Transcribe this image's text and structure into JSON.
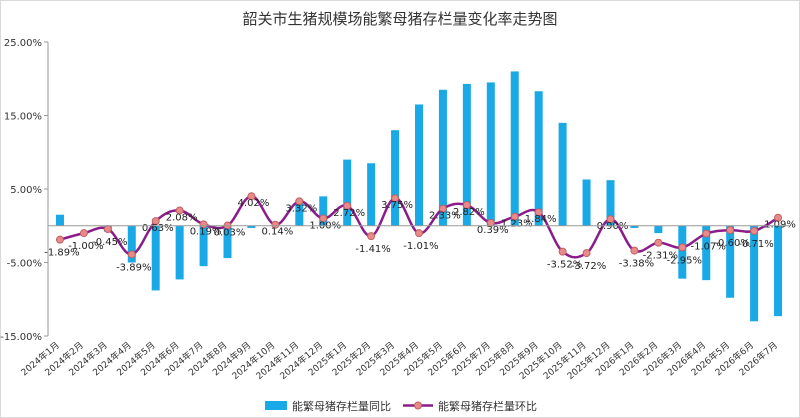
{
  "chart_data": {
    "type": "bar+line",
    "title": "韶关市生猪规模场能繁母猪存栏量变化率走势图",
    "categories": [
      "2024年1月",
      "2024年2月",
      "2024年3月",
      "2024年4月",
      "2024年5月",
      "2024年6月",
      "2024年7月",
      "2024年8月",
      "2024年9月",
      "2024年10月",
      "2024年11月",
      "2024年12月",
      "2025年1月",
      "2025年2月",
      "2025年3月",
      "2025年4月",
      "2025年5月",
      "2025年6月",
      "2025年7月",
      "2025年8月",
      "2025年9月",
      "2025年10月",
      "2025年11月",
      "2025年12月",
      "2026年1月",
      "2026年2月",
      "2026年3月",
      "2026年4月",
      "2026年5月",
      "2026年6月",
      "2026年7月"
    ],
    "y_ticks": [
      "25.00%",
      "15.00%",
      "5.00%",
      "-5.00%",
      "-15.00%"
    ],
    "ylim": [
      -15,
      25
    ],
    "yoy_series": {
      "name": "能繁母猪存栏量同比",
      "color": "#19a9e6",
      "values": [
        1.5,
        0,
        -0.8,
        -5.0,
        -8.8,
        -7.3,
        -5.5,
        -4.4,
        -0.3,
        0,
        3.5,
        4.0,
        9.0,
        8.5,
        13.0,
        16.5,
        18.5,
        19.3,
        19.5,
        21.0,
        18.3,
        14.0,
        6.3,
        6.2,
        -0.3,
        -1.0,
        -7.2,
        -7.4,
        -9.8,
        -13.0,
        -12.3
      ]
    },
    "mom_series": {
      "name": "能繁母猪存栏量环比",
      "color": "#8b1d8b",
      "marker_color": "#e88a8a",
      "values": [
        -1.89,
        -1.0,
        -0.45,
        -3.89,
        0.63,
        2.08,
        0.19,
        0.03,
        4.02,
        0.14,
        3.32,
        1.0,
        2.72,
        -1.41,
        3.75,
        -1.01,
        2.33,
        2.82,
        0.39,
        1.23,
        1.84,
        -3.52,
        -3.72,
        0.9,
        -3.38,
        -2.31,
        -2.95,
        -1.07,
        -0.6,
        -0.71,
        1.09
      ],
      "labels": [
        "-1.89%",
        "-1.00%",
        "-0.45%",
        "-3.89%",
        "0.63%",
        "2.08%",
        "0.19%",
        "0.03%",
        "4.02%",
        "0.14%",
        "3.32%",
        "1.00%",
        "2.72%",
        "-1.41%",
        "3.75%",
        "-1.01%",
        "2.33%",
        "2.82%",
        "0.39%",
        "1.23%",
        "1.84%",
        "-3.52%",
        "-3.72%",
        "0.90%",
        "-3.38%",
        "-2.31%",
        "-2.95%",
        "-1.07%",
        "-0.60%",
        "-0.71%",
        "1.09%"
      ]
    },
    "legend_position": "bottom",
    "grid": false
  }
}
